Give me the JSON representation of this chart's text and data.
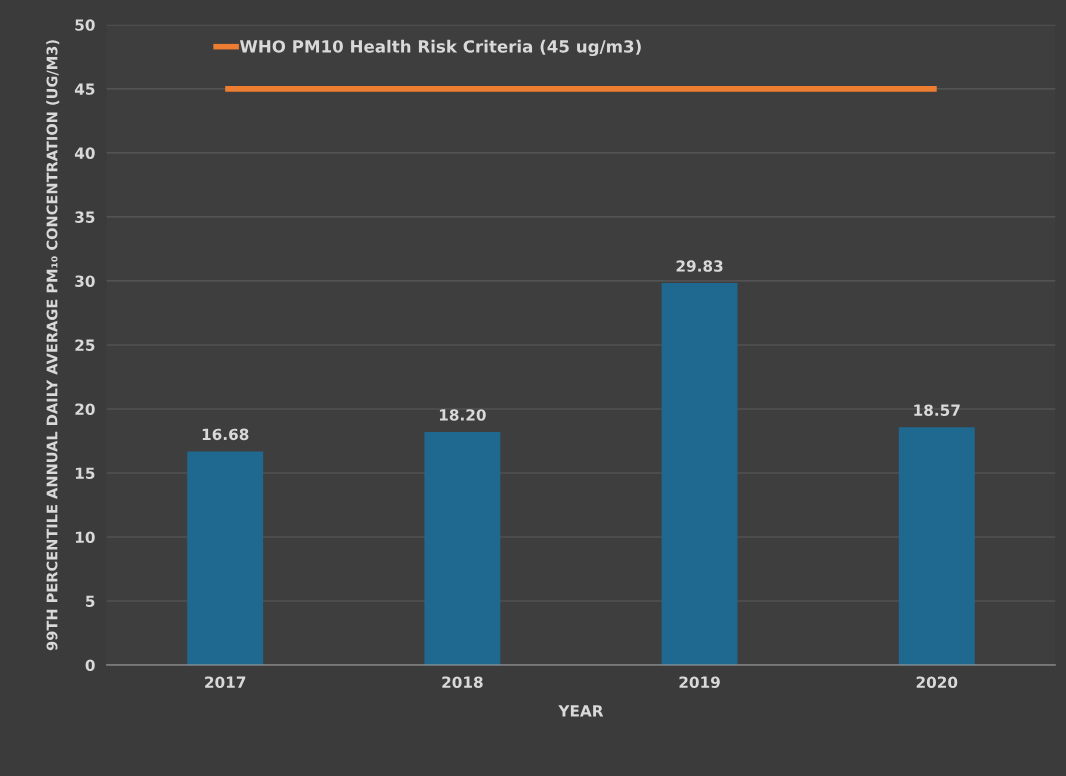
{
  "chart_data": {
    "type": "bar",
    "xlabel": "YEAR",
    "ylabel": "99TH PERCENTILE ANNUAL DAILY AVERAGE PM₁₀ CONCENTRATION (UG/M3)",
    "categories": [
      "2017",
      "2018",
      "2019",
      "2020"
    ],
    "series": [
      {
        "color": "#1f6990",
        "values": [
          16.68,
          18.2,
          29.83,
          18.57
        ],
        "value_labels": [
          "16.68",
          "18.20",
          "29.83",
          "18.57"
        ]
      },
      {
        "type": "line",
        "name": "WHO PM10 Health Risk Criteria (45 ug/m3)",
        "color": "#ed7d31",
        "values": [
          45,
          45,
          45,
          45
        ]
      }
    ],
    "ylim": [
      0,
      50
    ],
    "yticks": [
      0,
      5,
      10,
      15,
      20,
      25,
      30,
      35,
      40,
      45,
      50
    ],
    "grid": "y",
    "legend": "top",
    "marker": "none",
    "line_style": "solid"
  }
}
